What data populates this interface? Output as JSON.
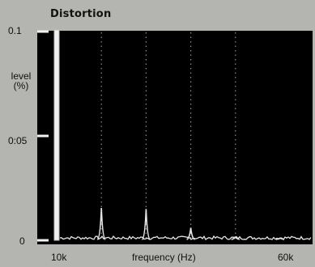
{
  "chart_data": {
    "type": "line",
    "title": "Distortion",
    "ylabel_line1": "level",
    "ylabel_line2": "(%)",
    "xlabel": "frequency (Hz)",
    "y_tick_labels": [
      "0.1",
      "0:05",
      "0"
    ],
    "x_tick_labels": [
      "10k",
      "60k"
    ],
    "xlim": [
      10000,
      60000
    ],
    "ylim": [
      0,
      0.1
    ],
    "grid": "vertical dotted at 20k, 30k, 40k, 50k",
    "colors": {
      "background": "#b4b4b0",
      "plot": "#000000",
      "trace": "#e6e6e6",
      "grid": "#8c8c8c"
    },
    "series": [
      {
        "values": [
          {
            "x": 10000,
            "y": 0.1
          },
          {
            "x": 20000,
            "y": 0.0155
          },
          {
            "x": 30000,
            "y": 0.015
          },
          {
            "x": 40000,
            "y": 0.006
          },
          {
            "x": 50000,
            "y": 0.0015
          },
          {
            "x": 60000,
            "y": 0.001
          }
        ]
      }
    ]
  }
}
